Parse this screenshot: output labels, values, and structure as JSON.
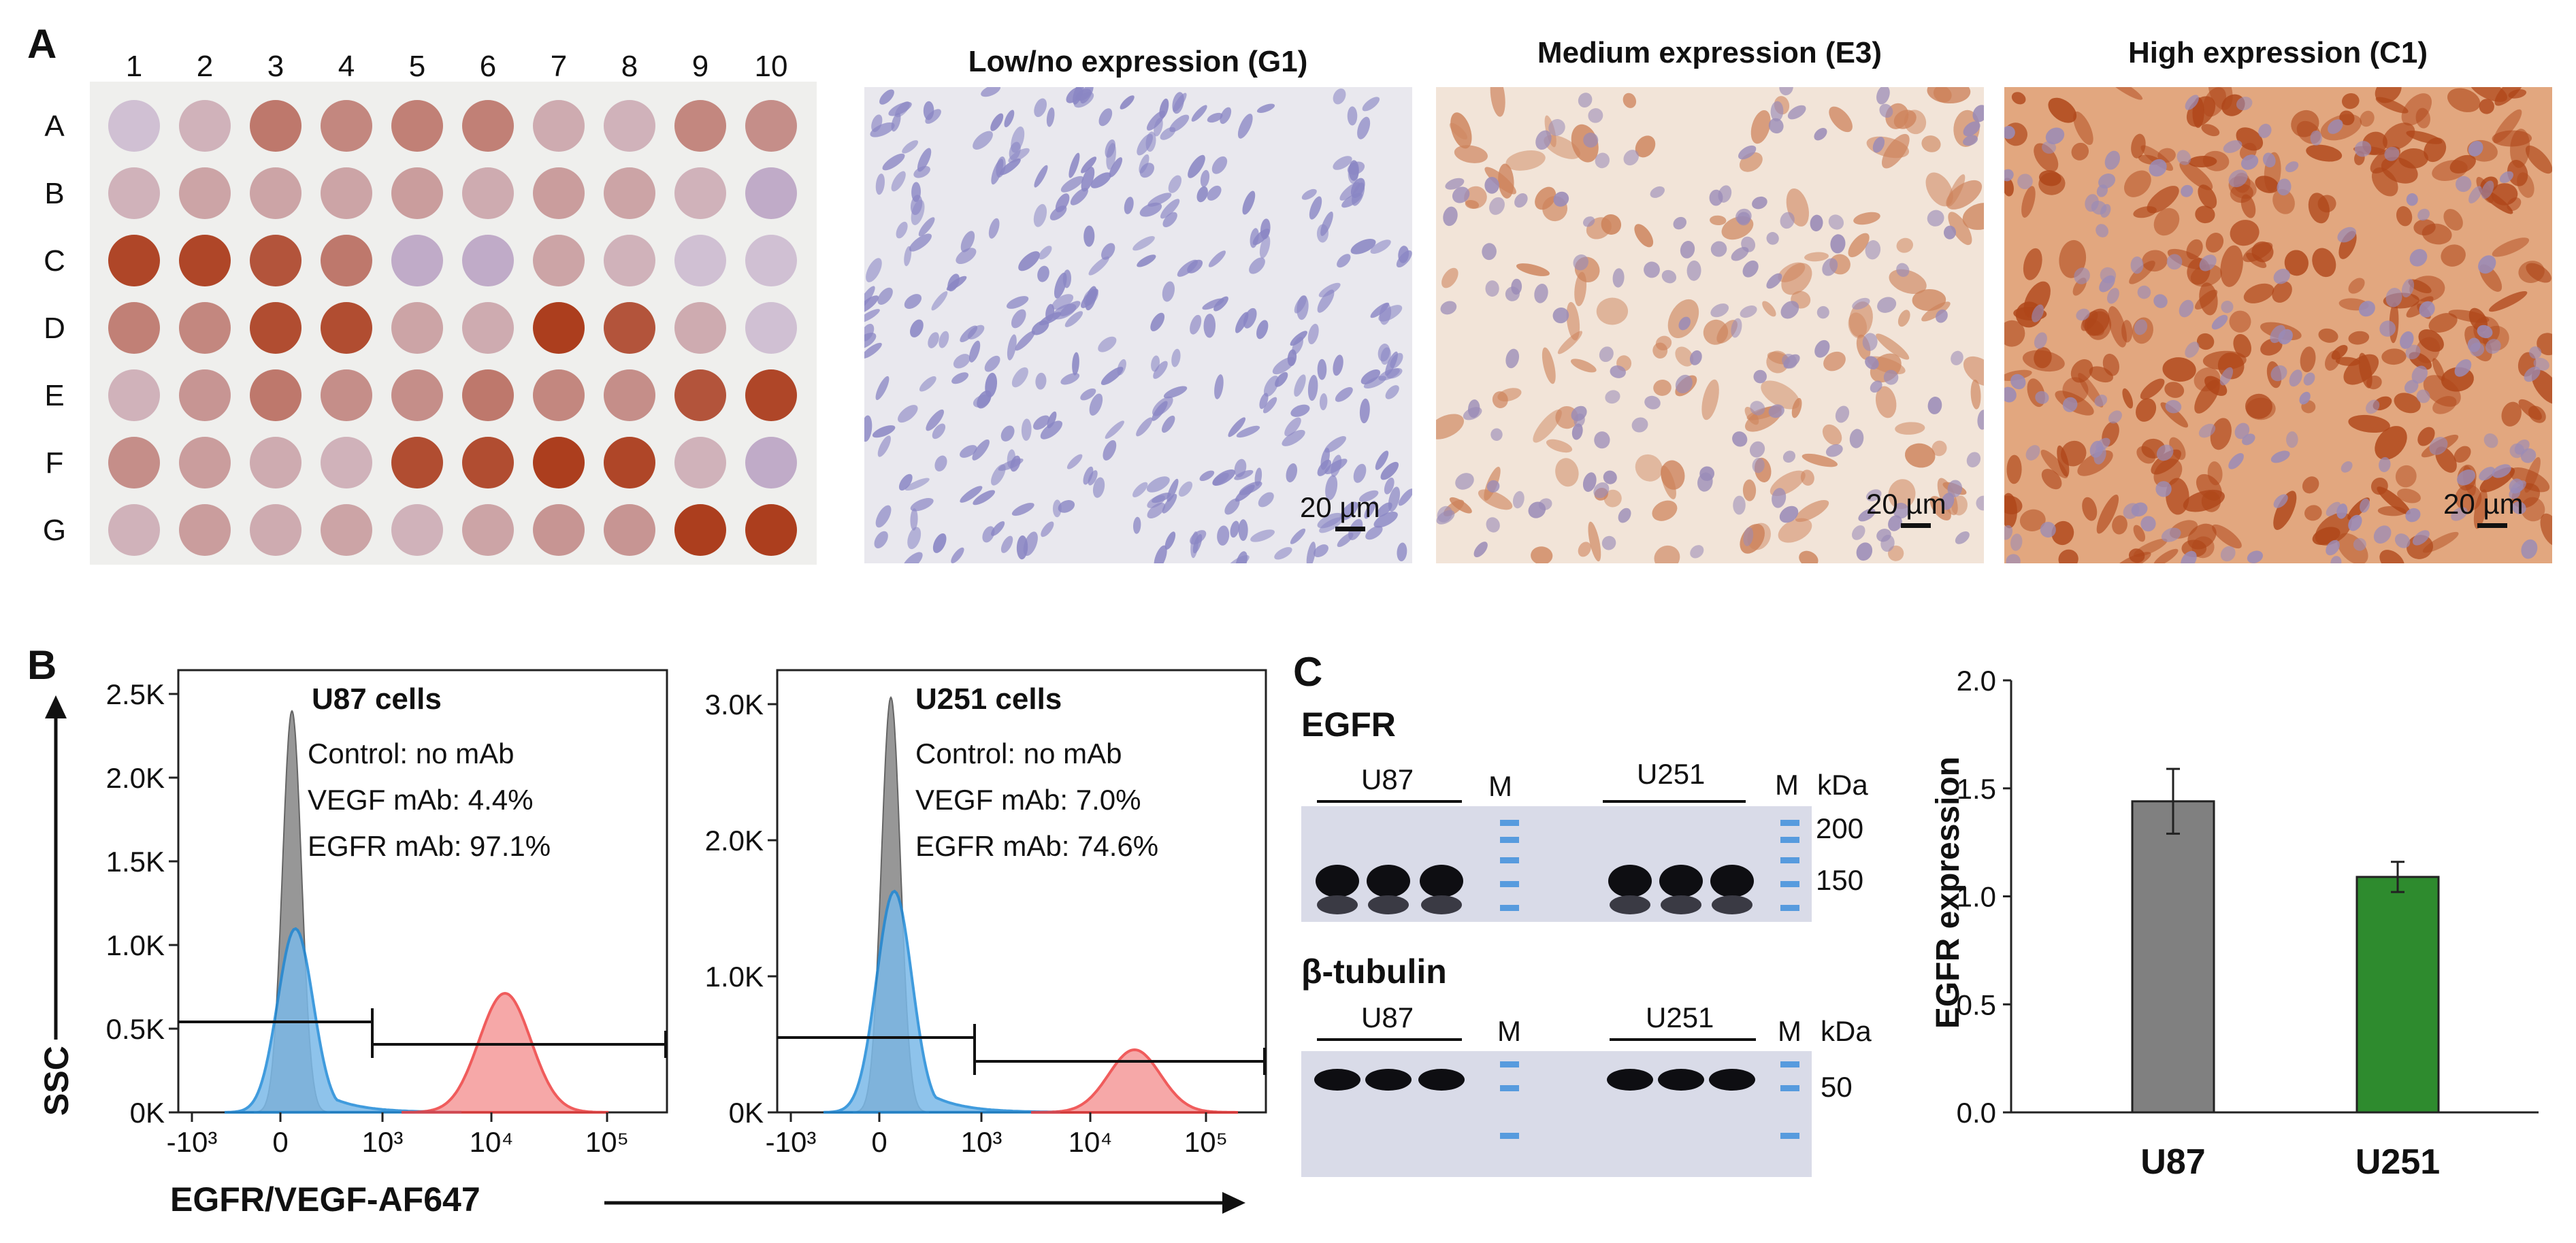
{
  "panel_letters": [
    "A",
    "B",
    "C"
  ],
  "panel_a": {
    "columns": [
      "1",
      "2",
      "3",
      "4",
      "5",
      "6",
      "7",
      "8",
      "9",
      "10"
    ],
    "rows": [
      "A",
      "B",
      "C",
      "D",
      "E",
      "F",
      "G"
    ],
    "stain_levels": [
      [
        0.1,
        0.15,
        0.55,
        0.45,
        0.5,
        0.5,
        0.2,
        0.15,
        0.45,
        0.4
      ],
      [
        0.15,
        0.25,
        0.25,
        0.25,
        0.3,
        0.2,
        0.3,
        0.25,
        0.15,
        0.05
      ],
      [
        0.9,
        0.9,
        0.8,
        0.55,
        0.05,
        0.05,
        0.25,
        0.15,
        0.1,
        0.1
      ],
      [
        0.5,
        0.45,
        0.85,
        0.85,
        0.25,
        0.2,
        0.95,
        0.8,
        0.2,
        0.1
      ],
      [
        0.15,
        0.35,
        0.55,
        0.4,
        0.4,
        0.55,
        0.45,
        0.4,
        0.8,
        0.9
      ],
      [
        0.4,
        0.3,
        0.2,
        0.15,
        0.85,
        0.85,
        0.95,
        0.9,
        0.15,
        0.05
      ],
      [
        0.15,
        0.3,
        0.2,
        0.25,
        0.15,
        0.25,
        0.35,
        0.35,
        0.95,
        0.95
      ]
    ],
    "micrographs": [
      {
        "title": "Low/no expression (G1)",
        "scale_bar": "20 µm",
        "level": 0.0
      },
      {
        "title": "Medium expression (E3)",
        "scale_bar": "20 µm",
        "level": 0.5
      },
      {
        "title": "High expression (C1)",
        "scale_bar": "20 µm",
        "level": 1.0
      }
    ]
  },
  "panel_b": {
    "y_axis_label": "SSC",
    "x_axis_label": "EGFR/VEGF-AF647",
    "plots": [
      {
        "title": "U87 cells",
        "legend": [
          "Control: no mAb",
          "VEGF mAb: 4.4%",
          "EGFR mAb: 97.1%"
        ],
        "y_ticks": [
          "0K",
          "0.5K",
          "1.0K",
          "1.5K",
          "2.0K",
          "2.5K"
        ],
        "x_ticks": [
          "-10³",
          "0",
          "10³",
          "10⁴",
          "10⁵"
        ]
      },
      {
        "title": "U251 cells",
        "legend": [
          "Control: no mAb",
          "VEGF mAb: 7.0%",
          "EGFR mAb: 74.6%"
        ],
        "y_ticks": [
          "0K",
          "1.0K",
          "2.0K",
          "3.0K"
        ],
        "x_ticks": [
          "-10³",
          "0",
          "10³",
          "10⁴",
          "10⁵"
        ]
      }
    ],
    "colors": {
      "control": "#7a7a7a",
      "vegf": "#1f8ad8",
      "egfr": "#ee4040"
    }
  },
  "panel_c": {
    "blot_1": {
      "title": "EGFR",
      "lane_groups": [
        "U87",
        "U251"
      ],
      "marker": "M",
      "unit": "kDa",
      "sizes": [
        "200",
        "150"
      ]
    },
    "blot_2": {
      "title": "β-tubulin",
      "lane_groups": [
        "U87",
        "U251"
      ],
      "marker": "M",
      "unit": "kDa",
      "sizes": [
        "50"
      ]
    },
    "chart_data": {
      "type": "bar",
      "categories": [
        "U87",
        "U251"
      ],
      "values": [
        1.44,
        1.09
      ],
      "errors": [
        0.15,
        0.07
      ],
      "ylabel": "EGFR expression",
      "xlabel": "",
      "ylim": [
        0,
        2
      ],
      "y_ticks": [
        "0.0",
        "0.5",
        "1.0",
        "1.5",
        "2.0"
      ],
      "bar_colors": [
        "#808080",
        "#2e8b2e"
      ],
      "grid": false
    }
  }
}
